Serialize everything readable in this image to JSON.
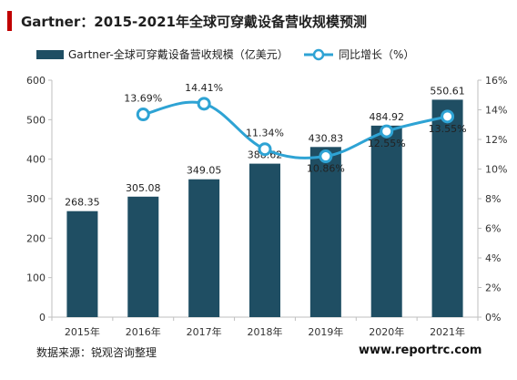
{
  "header": {
    "title": "Gartner：2015-2021年全球可穿戴设备营收规模预测"
  },
  "footer": {
    "source": "数据来源：锐观咨询整理",
    "website": "www.reportrc.com"
  },
  "colors": {
    "bar": "#1f4e63",
    "line": "#2ea3d4",
    "accent": "#c00000"
  },
  "chart_data": {
    "type": "bar",
    "title": "Gartner：2015-2021年全球可穿戴设备营收规模预测",
    "categories": [
      "2015年",
      "2016年",
      "2017年",
      "2018年",
      "2019年",
      "2020年",
      "2021年"
    ],
    "series": [
      {
        "name": "Gartner-全球可穿戴设备营收规模（亿美元）",
        "type": "bar",
        "axis": "left",
        "values": [
          268.35,
          305.08,
          349.05,
          388.62,
          430.83,
          484.92,
          550.61
        ],
        "labels": [
          "268.35",
          "305.08",
          "349.05",
          "388.62",
          "430.83",
          "484.92",
          "550.61"
        ]
      },
      {
        "name": "同比增长（%）",
        "type": "line",
        "axis": "right",
        "values": [
          null,
          13.69,
          14.41,
          11.34,
          10.86,
          12.55,
          13.55
        ],
        "labels": [
          "",
          "13.69%",
          "14.41%",
          "11.34%",
          "10.86%",
          "12.55%",
          "13.55%"
        ]
      }
    ],
    "ylim": [
      0,
      600
    ],
    "yticks": [
      "0",
      "100",
      "200",
      "300",
      "400",
      "500",
      "600"
    ],
    "y2lim": [
      0,
      16
    ],
    "y2ticks": [
      "0%",
      "2%",
      "4%",
      "6%",
      "8%",
      "10%",
      "12%",
      "14%",
      "16%"
    ],
    "legend_position": "top",
    "grid": false
  }
}
